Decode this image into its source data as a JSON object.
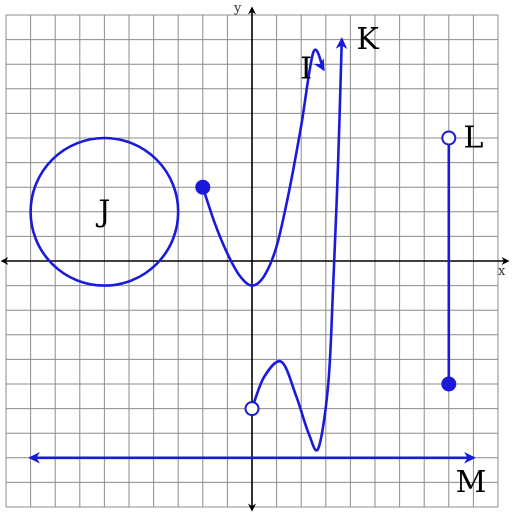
{
  "chart_data": {
    "type": "line",
    "xlabel": "x",
    "ylabel": "y",
    "xlim": [
      -10,
      10
    ],
    "ylim": [
      -10,
      10
    ],
    "grid": true,
    "colors": {
      "curve": "#1a1adb",
      "grid": "#8c8c8c",
      "axes": "#000000"
    },
    "series": [
      {
        "name": "I",
        "points": [
          [
            -2,
            3
          ],
          [
            -1.5,
            1.5
          ],
          [
            -1,
            0.3
          ],
          [
            -0.5,
            -0.6
          ],
          [
            0,
            -1
          ],
          [
            0.5,
            -0.6
          ],
          [
            1,
            0.6
          ],
          [
            1.5,
            2.8
          ],
          [
            2,
            5.5
          ],
          [
            2.5,
            8.5
          ],
          [
            2.9,
            7.8
          ]
        ],
        "start_point": "closed",
        "end": "arrow"
      },
      {
        "name": "J",
        "shape": "circle",
        "center": [
          -6,
          2
        ],
        "radius": 3
      },
      {
        "name": "K",
        "points": [
          [
            0,
            -6
          ],
          [
            0.5,
            -4.7
          ],
          [
            1.2,
            -4.1
          ],
          [
            1.8,
            -5.5
          ],
          [
            2.3,
            -7
          ],
          [
            2.7,
            -7.6
          ],
          [
            3.1,
            -5
          ],
          [
            3.3,
            -1
          ],
          [
            3.5,
            4
          ],
          [
            3.65,
            9
          ]
        ],
        "start_point": "open",
        "end": "arrow"
      },
      {
        "name": "L",
        "points": [
          [
            8,
            -5
          ],
          [
            8,
            5
          ]
        ],
        "start_point": "closed",
        "end_point": "open"
      },
      {
        "name": "M",
        "points": [
          [
            -9,
            -8
          ],
          [
            9,
            -8
          ]
        ],
        "start": "arrow",
        "end": "arrow"
      }
    ],
    "labels": [
      {
        "text": "I",
        "x": 2.2,
        "y": 7.8
      },
      {
        "text": "J",
        "x": -6,
        "y": 2
      },
      {
        "text": "K",
        "x": 4.7,
        "y": 9
      },
      {
        "text": "L",
        "x": 9,
        "y": 5
      },
      {
        "text": "M",
        "x": 8.9,
        "y": -9
      }
    ]
  }
}
